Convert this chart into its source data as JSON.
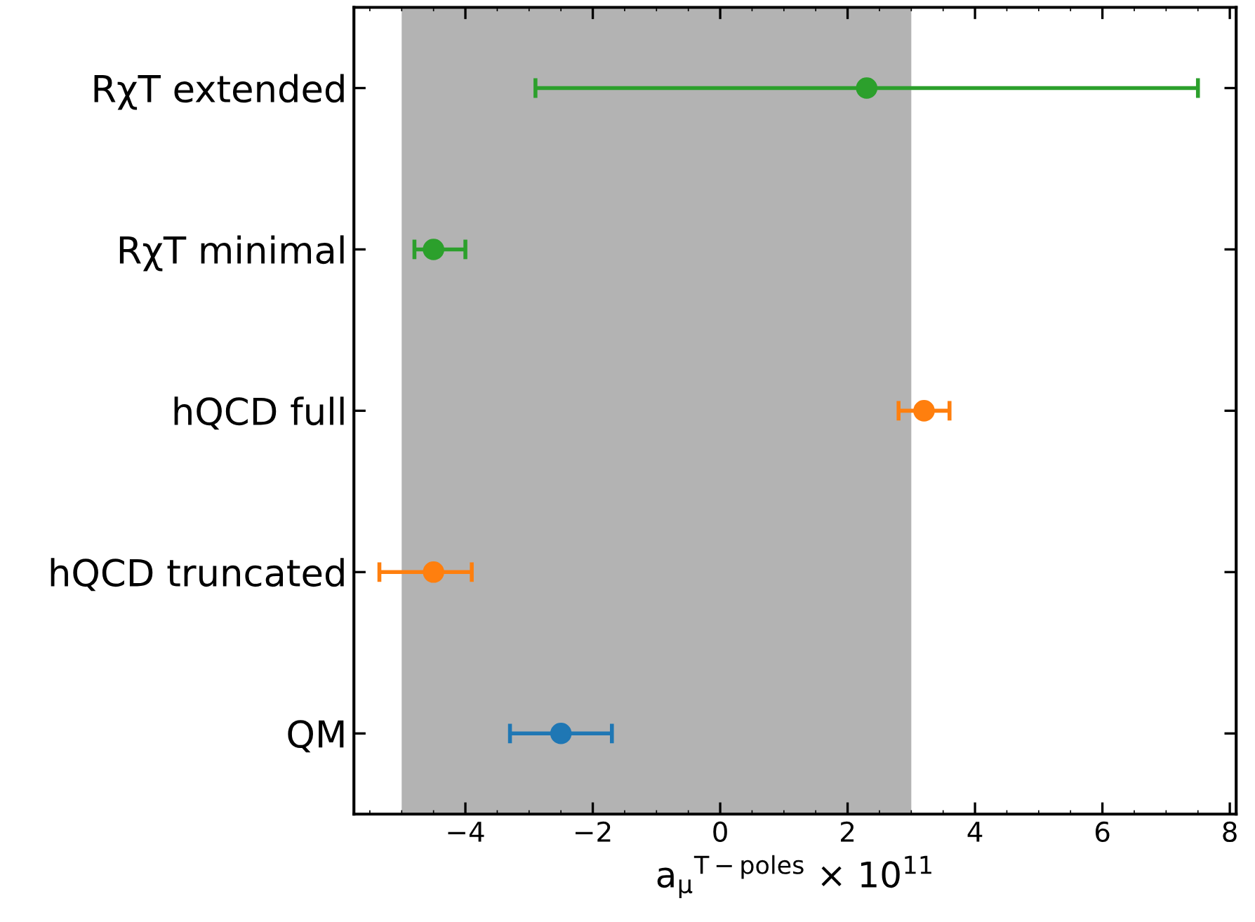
{
  "chart_data": {
    "type": "scatter",
    "orientation": "horizontal",
    "xlabel": "a$_{μ}$$^{T−poles}$ × 10$^{11}$",
    "categories": [
      "RχT extended",
      "RχT minimal",
      "hQCD full",
      "hQCD truncated",
      "QM"
    ],
    "values": [
      2.3,
      -4.5,
      3.2,
      -4.5,
      -2.5
    ],
    "errors": [
      5.2,
      [
        -4.8,
        -4.0
      ],
      0.4,
      [
        -5.35,
        -3.9
      ],
      0.8
    ],
    "colors": [
      "#2ca02c",
      "#2ca02c",
      "#ff7f0e",
      "#ff7f0e",
      "#1f77b4"
    ],
    "marker": "circle",
    "xlim": [
      -5.75,
      8.1
    ],
    "xticks": [
      {
        "value": -4,
        "label": "−4"
      },
      {
        "value": -2,
        "label": "−2"
      },
      0,
      2,
      4,
      6,
      8
    ],
    "bands": [
      {
        "axis": "x",
        "from": -5,
        "to": 3,
        "color": "#b3b3b3"
      }
    ]
  }
}
